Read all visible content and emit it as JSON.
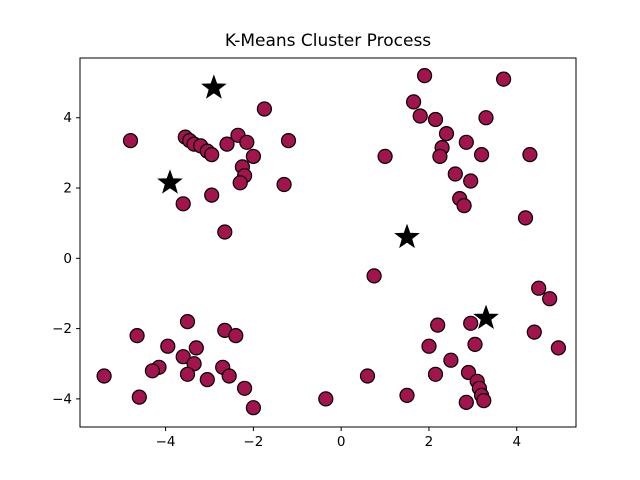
{
  "chart_data": {
    "type": "scatter",
    "title": "K-Means Cluster Process",
    "xlabel": "",
    "ylabel": "",
    "xlim": [
      -5.95,
      5.35
    ],
    "ylim": [
      -4.8,
      5.7
    ],
    "xticks": [
      -4,
      -2,
      0,
      2,
      4
    ],
    "yticks": [
      -4,
      -2,
      0,
      2,
      4
    ],
    "grid": false,
    "legend": "none",
    "point_color": "#a3134e",
    "point_edge_color": "#000000",
    "centroid_color": "#000000",
    "series": [
      {
        "name": "samples",
        "marker": "circle",
        "points": [
          [
            -4.8,
            3.35
          ],
          [
            -3.55,
            3.45
          ],
          [
            -3.45,
            3.35
          ],
          [
            -3.35,
            3.25
          ],
          [
            -3.2,
            3.2
          ],
          [
            -3.05,
            3.05
          ],
          [
            -2.95,
            2.95
          ],
          [
            -2.6,
            3.25
          ],
          [
            -2.35,
            3.5
          ],
          [
            -2.15,
            3.3
          ],
          [
            -1.75,
            4.25
          ],
          [
            -2.0,
            2.9
          ],
          [
            -2.25,
            2.6
          ],
          [
            -2.2,
            2.35
          ],
          [
            -2.3,
            2.15
          ],
          [
            -1.2,
            3.35
          ],
          [
            -1.3,
            2.1
          ],
          [
            -3.6,
            1.55
          ],
          [
            -2.95,
            1.8
          ],
          [
            -2.65,
            0.75
          ],
          [
            1.9,
            5.2
          ],
          [
            3.7,
            5.1
          ],
          [
            1.65,
            4.45
          ],
          [
            1.8,
            4.05
          ],
          [
            2.15,
            3.95
          ],
          [
            3.3,
            4.0
          ],
          [
            2.4,
            3.55
          ],
          [
            2.85,
            3.3
          ],
          [
            2.3,
            3.15
          ],
          [
            2.25,
            2.9
          ],
          [
            3.2,
            2.95
          ],
          [
            4.3,
            2.95
          ],
          [
            2.6,
            2.4
          ],
          [
            2.95,
            2.2
          ],
          [
            2.7,
            1.7
          ],
          [
            2.8,
            1.5
          ],
          [
            1.0,
            2.9
          ],
          [
            4.2,
            1.15
          ],
          [
            -4.65,
            -2.2
          ],
          [
            -3.5,
            -1.8
          ],
          [
            -2.65,
            -2.05
          ],
          [
            -2.4,
            -2.2
          ],
          [
            -3.95,
            -2.5
          ],
          [
            -3.3,
            -2.55
          ],
          [
            -3.6,
            -2.8
          ],
          [
            -3.35,
            -3.0
          ],
          [
            -4.15,
            -3.1
          ],
          [
            -4.3,
            -3.2
          ],
          [
            -3.5,
            -3.3
          ],
          [
            -3.05,
            -3.45
          ],
          [
            -2.7,
            -3.1
          ],
          [
            -2.55,
            -3.35
          ],
          [
            -5.4,
            -3.35
          ],
          [
            -4.6,
            -3.95
          ],
          [
            -2.2,
            -3.7
          ],
          [
            -2.0,
            -4.25
          ],
          [
            4.5,
            -0.85
          ],
          [
            4.75,
            -1.15
          ],
          [
            2.2,
            -1.9
          ],
          [
            2.95,
            -1.85
          ],
          [
            4.4,
            -2.1
          ],
          [
            2.0,
            -2.5
          ],
          [
            3.05,
            -2.45
          ],
          [
            2.5,
            -2.9
          ],
          [
            4.95,
            -2.55
          ],
          [
            2.15,
            -3.3
          ],
          [
            2.9,
            -3.25
          ],
          [
            3.1,
            -3.5
          ],
          [
            3.15,
            -3.7
          ],
          [
            3.2,
            -3.9
          ],
          [
            3.25,
            -4.05
          ],
          [
            2.85,
            -4.1
          ],
          [
            0.6,
            -3.35
          ],
          [
            1.5,
            -3.9
          ],
          [
            -0.35,
            -4.0
          ],
          [
            0.75,
            -0.5
          ]
        ]
      },
      {
        "name": "centroids",
        "marker": "star",
        "points": [
          [
            -2.9,
            4.85
          ],
          [
            -3.9,
            2.15
          ],
          [
            1.5,
            0.6
          ],
          [
            3.3,
            -1.7
          ]
        ]
      }
    ]
  }
}
